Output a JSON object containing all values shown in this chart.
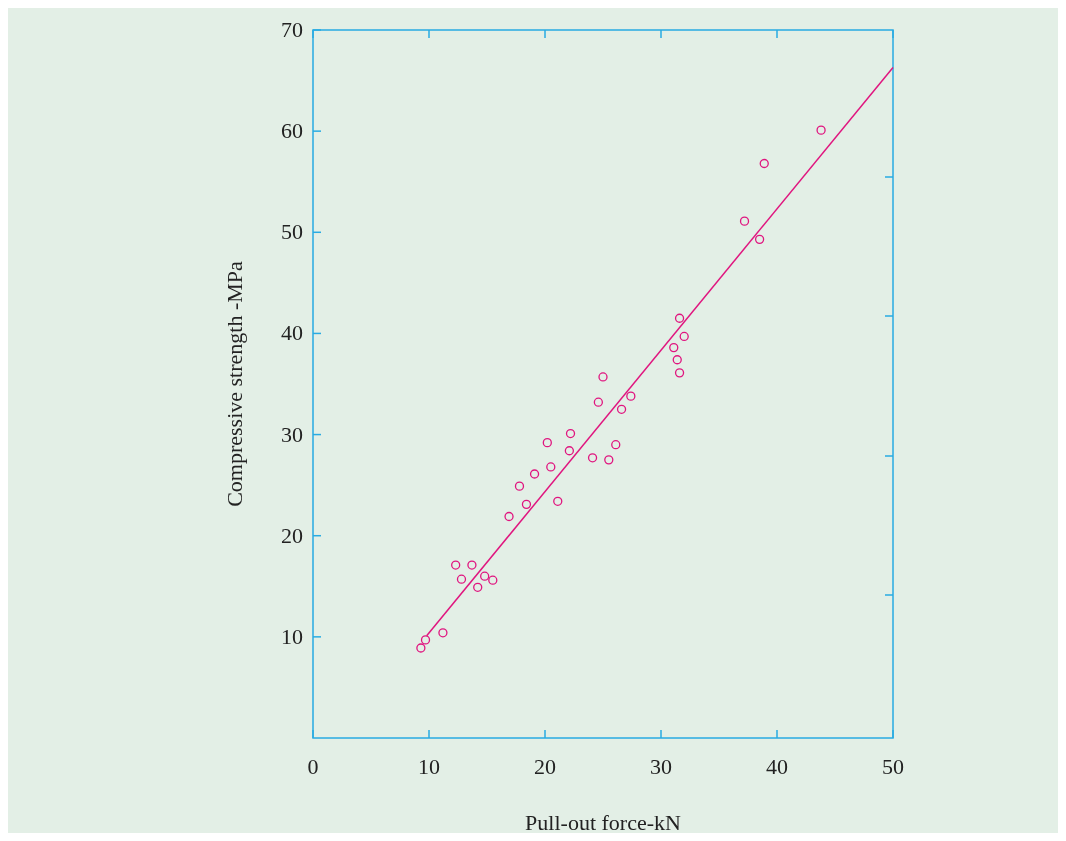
{
  "chart_data": {
    "type": "scatter",
    "xlabel": "Pull-out force-kN",
    "ylabel": "Compressive strength -MPa",
    "xlim": [
      0,
      50
    ],
    "xticks": [
      0,
      10,
      20,
      30,
      40,
      50
    ],
    "ylim": [
      0,
      70
    ],
    "yticks": [
      10,
      20,
      30,
      40,
      50,
      60,
      70
    ],
    "grid": false,
    "series": [
      {
        "marker": "circle",
        "color": "#e0157f",
        "x": [
          9.3,
          9.7,
          11.2,
          12.3,
          12.8,
          13.7,
          14.2,
          14.8,
          15.5,
          16.9,
          17.8,
          18.4,
          19.1,
          20.2,
          20.5,
          21.1,
          22.1,
          22.2,
          24.1,
          24.6,
          25.0,
          25.5,
          26.1,
          26.6,
          27.4,
          31.1,
          31.4,
          31.6,
          31.6,
          32.0,
          37.2,
          38.5,
          38.9,
          43.8
        ],
        "values": [
          8.9,
          9.7,
          10.4,
          17.1,
          15.7,
          17.1,
          14.9,
          16.0,
          15.6,
          21.9,
          24.9,
          23.1,
          26.1,
          29.2,
          26.8,
          23.4,
          28.4,
          30.1,
          27.7,
          33.2,
          35.7,
          27.5,
          29.0,
          32.5,
          33.8,
          38.6,
          37.4,
          41.5,
          36.1,
          39.7,
          51.1,
          49.3,
          56.8,
          60.1
        ]
      },
      {
        "type": "line",
        "color": "#e0157f",
        "x": [
          9.8,
          50
        ],
        "values": [
          10.1,
          66.3
        ]
      }
    ]
  }
}
